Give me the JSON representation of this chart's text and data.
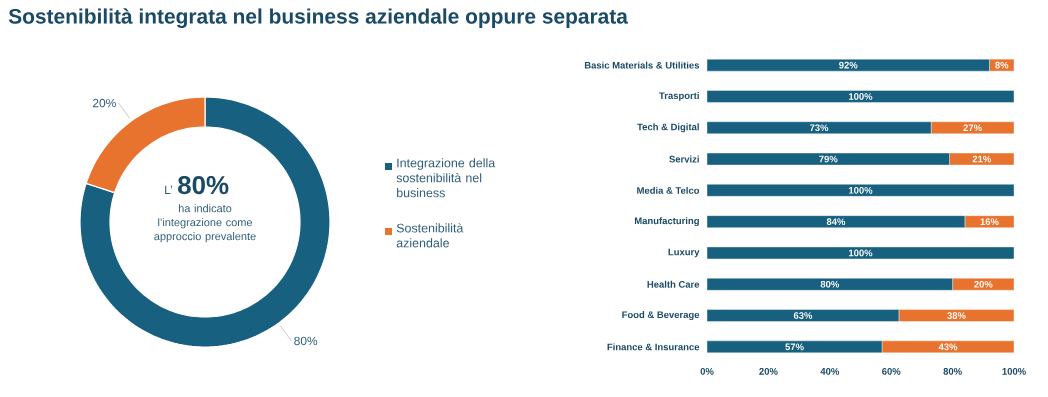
{
  "chart_data": [
    {
      "type": "donut",
      "title": "Sostenibilità integrata nel business aziendale oppure separata",
      "categories": [
        "Integrazione della sostenibilità nel business",
        "Sostenibilità aziendale"
      ],
      "values": [
        80,
        20
      ],
      "colors": [
        "#17607f",
        "#e8732f"
      ],
      "value_labels": [
        "80%",
        "20%"
      ],
      "annotations": [
        "L’",
        "80%",
        "ha indicato l’integrazione come approccio prevalente"
      ],
      "legend": "right"
    },
    {
      "type": "bar",
      "orientation": "horizontal",
      "stacked": true,
      "categories": [
        "Basic Materials & Utilities",
        "Trasporti",
        "Tech & Digital",
        "Servizi",
        "Media & Telco",
        "Manufacturing",
        "Luxury",
        "Health Care",
        "Food & Beverage",
        "Finance & Insurance"
      ],
      "series": [
        {
          "color": "#17607f",
          "values": [
            92,
            100,
            73,
            79,
            100,
            84,
            100,
            80,
            62.5,
            57
          ],
          "value_labels": [
            "92%",
            "100%",
            "73%",
            "79%",
            "100%",
            "84%",
            "100%",
            "80%",
            "63%",
            "57%"
          ]
        },
        {
          "color": "#e8732f",
          "values": [
            8,
            0,
            27,
            21,
            0,
            16,
            0,
            20,
            37.5,
            43
          ],
          "value_labels": [
            "8%",
            null,
            "27%",
            "21%",
            null,
            "16%",
            null,
            "20%",
            "38%",
            "43%"
          ]
        }
      ],
      "xlim": [
        0,
        100
      ],
      "xticks": [
        {
          "value": 0,
          "label": "0%"
        },
        {
          "value": 20,
          "label": "20%"
        },
        {
          "value": 40,
          "label": "40%"
        },
        {
          "value": 60,
          "label": "60%"
        },
        {
          "value": 80,
          "label": "80%"
        },
        {
          "value": 100,
          "label": "100%"
        }
      ]
    }
  ]
}
